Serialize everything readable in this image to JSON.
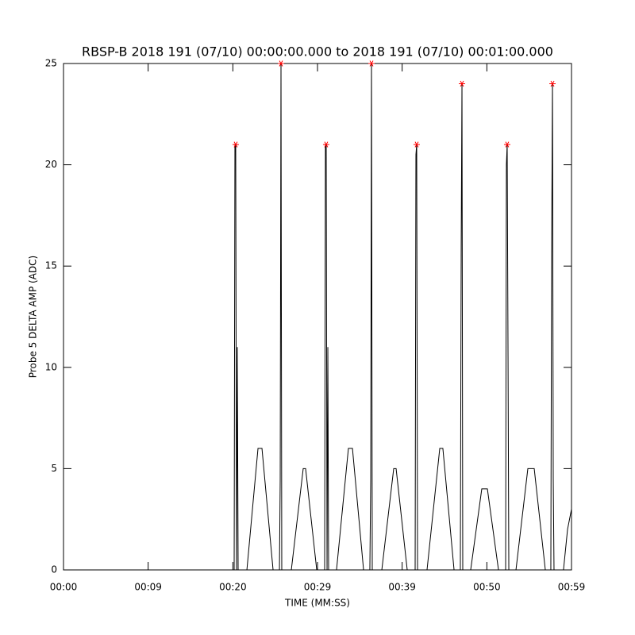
{
  "chart_data": {
    "type": "line",
    "title": "RBSP-B 2018 191 (07/10) 00:00:00.000 to 2018 191 (07/10) 00:01:00.000",
    "xlabel": "TIME (MM:SS)",
    "ylabel": "Probe 5 DELTA AMP (ADC)",
    "xlim": [
      0,
      59
    ],
    "ylim": [
      0,
      25
    ],
    "xticks": [
      {
        "value": 0,
        "label": "00:00"
      },
      {
        "value": 9.83,
        "label": "00:09"
      },
      {
        "value": 19.67,
        "label": "00:20"
      },
      {
        "value": 29.5,
        "label": "00:29"
      },
      {
        "value": 39.33,
        "label": "00:39"
      },
      {
        "value": 49.17,
        "label": "00:50"
      },
      {
        "value": 59,
        "label": "00:59"
      }
    ],
    "yticks": [
      0,
      5,
      10,
      15,
      20,
      25
    ],
    "series": [
      {
        "color": "#000000",
        "x": [
          0,
          19.82,
          19.91,
          20.0,
          20.1,
          20.19,
          20.28,
          21.3,
          22.59,
          23.05,
          24.34,
          25.08,
          25.17,
          25.26,
          25.35,
          26.46,
          27.84,
          28.12,
          29.41,
          30.33,
          30.42,
          30.51,
          30.61,
          30.7,
          30.79,
          31.71,
          33.09,
          33.56,
          34.85,
          35.58,
          35.68,
          35.77,
          35.86,
          36.97,
          38.35,
          38.63,
          39.92,
          40.84,
          40.93,
          41.02,
          41.12,
          42.22,
          43.7,
          44.06,
          45.36,
          46.09,
          46.19,
          46.28,
          46.37,
          47.29,
          48.58,
          49.23,
          50.52,
          51.35,
          51.44,
          51.53,
          51.63,
          51.72,
          52.55,
          53.93,
          54.67,
          55.96,
          56.6,
          56.69,
          56.79,
          56.88,
          56.97,
          58.07,
          58.54,
          59.0
        ],
        "values": [
          0,
          0,
          21,
          21,
          0,
          11,
          0,
          0,
          6,
          6,
          0,
          0,
          4.5,
          25,
          0,
          0,
          5,
          5,
          0,
          0,
          21,
          21,
          0,
          11,
          0,
          0,
          6,
          6,
          0,
          0,
          4.5,
          25,
          0,
          0,
          5,
          5,
          0,
          0,
          20.5,
          21,
          0,
          0,
          6,
          6,
          0,
          0,
          16,
          24,
          0,
          0,
          4,
          4,
          0,
          0,
          20,
          21,
          10.5,
          0,
          0,
          5,
          5,
          0,
          0,
          15.5,
          24,
          4.5,
          0,
          0,
          2,
          3
        ]
      },
      {
        "color": "#ff0000",
        "marker": "asterisk",
        "x": [
          20.0,
          25.26,
          30.51,
          35.77,
          41.02,
          46.28,
          51.53,
          56.79
        ],
        "values": [
          21,
          25,
          21,
          25,
          21,
          24,
          21,
          24
        ]
      }
    ]
  }
}
